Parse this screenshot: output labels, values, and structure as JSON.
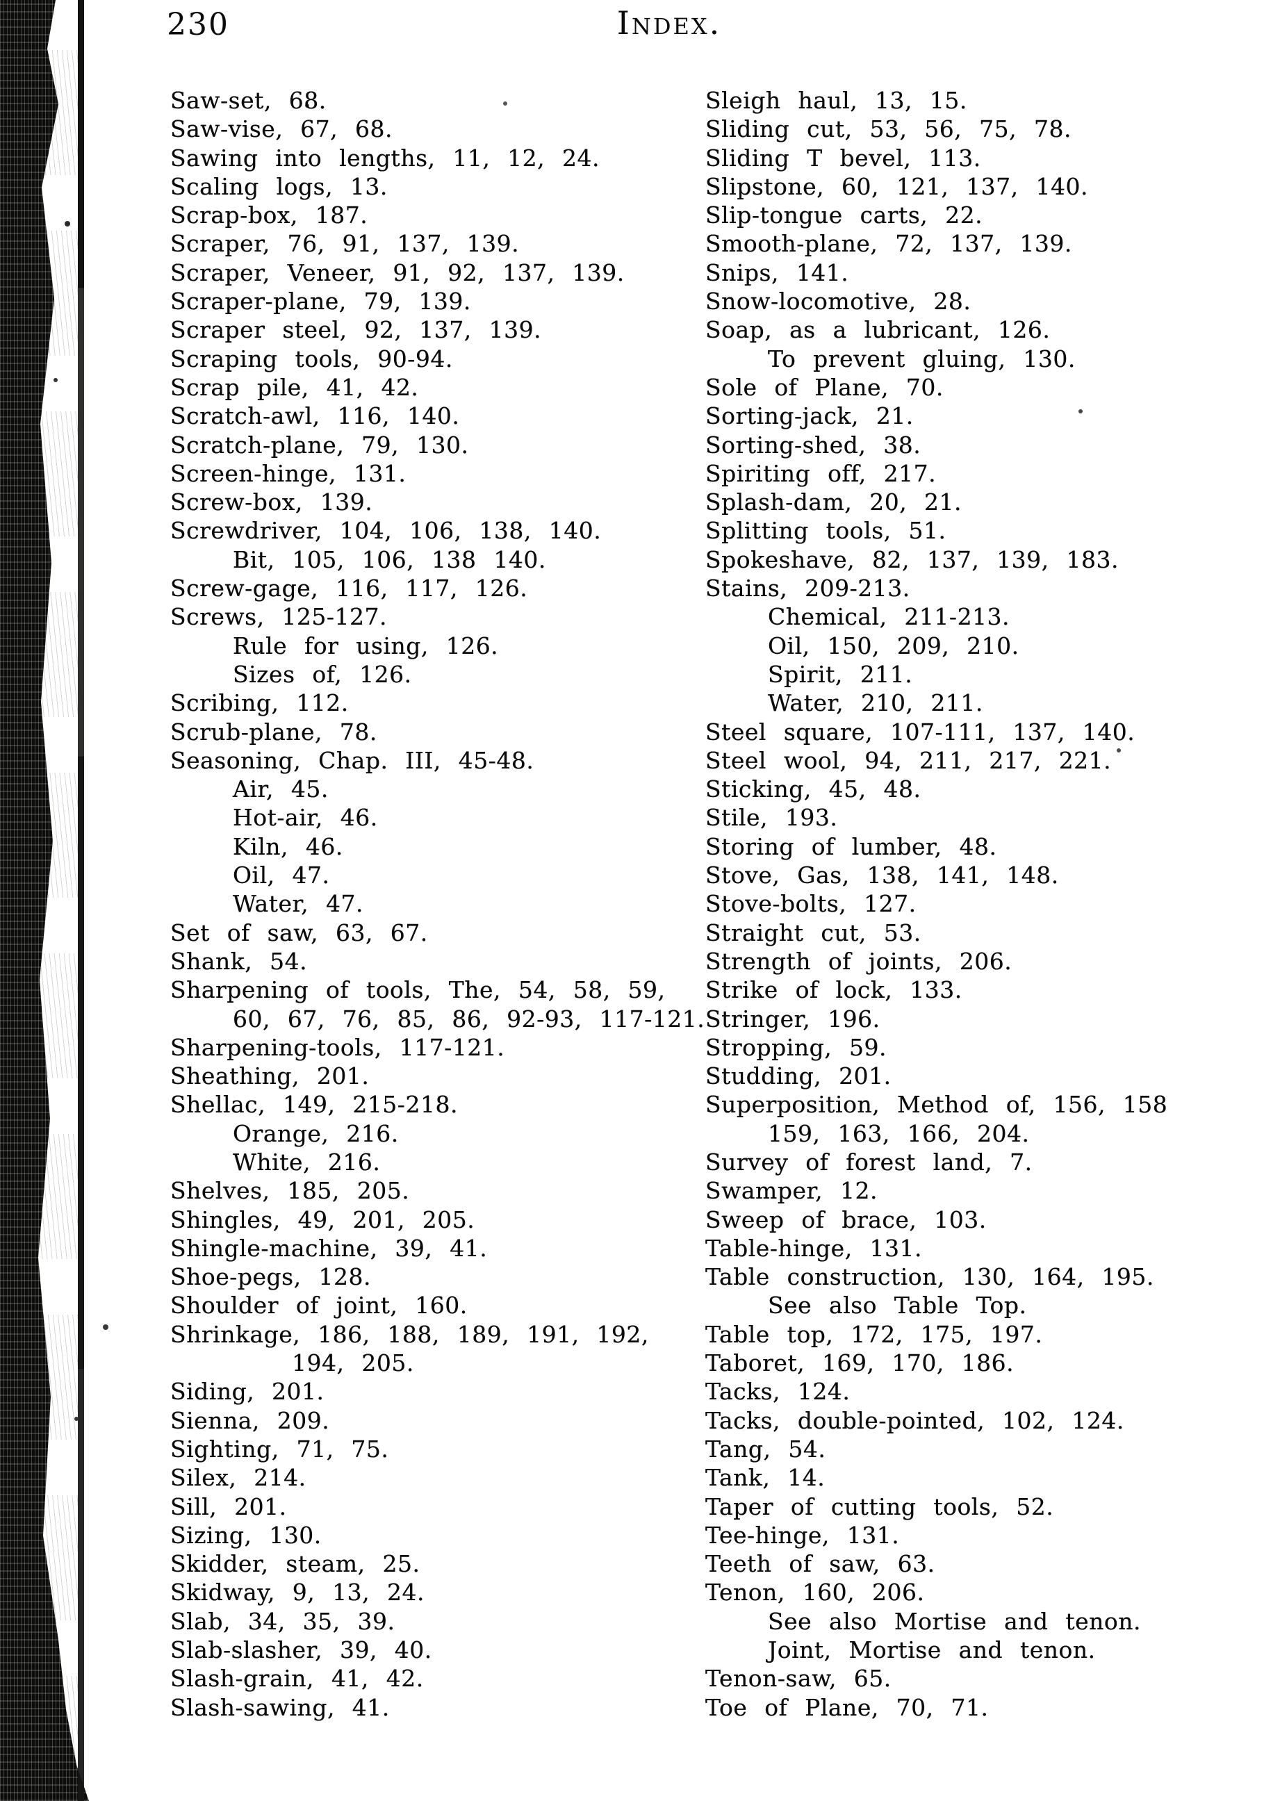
{
  "page": {
    "number": "230",
    "title": "Index."
  },
  "colors": {
    "ink": "#0c0c0c",
    "paper": "#ffffff",
    "spine": "#0d0d0c"
  },
  "columns": {
    "left": [
      {
        "t": "Saw-set, 68.",
        "i": 0
      },
      {
        "t": "Saw-vise, 67, 68.",
        "i": 0
      },
      {
        "t": "Sawing into lengths, 11, 12, 24.",
        "i": 0
      },
      {
        "t": "Scaling logs, 13.",
        "i": 0
      },
      {
        "t": "Scrap-box, 187.",
        "i": 0
      },
      {
        "t": "Scraper, 76, 91, 137, 139.",
        "i": 0
      },
      {
        "t": "Scraper, Veneer, 91, 92, 137, 139.",
        "i": 0
      },
      {
        "t": "Scraper-plane, 79, 139.",
        "i": 0
      },
      {
        "t": "Scraper steel, 92, 137, 139.",
        "i": 0
      },
      {
        "t": "Scraping tools, 90-94.",
        "i": 0
      },
      {
        "t": "Scrap pile, 41, 42.",
        "i": 0
      },
      {
        "t": "Scratch-awl, 116, 140.",
        "i": 0
      },
      {
        "t": "Scratch-plane, 79, 130.",
        "i": 0
      },
      {
        "t": "Screen-hinge, 131.",
        "i": 0
      },
      {
        "t": "Screw-box, 139.",
        "i": 0
      },
      {
        "t": "Screwdriver, 104, 106, 138, 140.",
        "i": 0
      },
      {
        "t": "Bit, 105, 106, 138 140.",
        "i": 1
      },
      {
        "t": "Screw-gage, 116, 117, 126.",
        "i": 0
      },
      {
        "t": "Screws, 125-127.",
        "i": 0
      },
      {
        "t": "Rule for using, 126.",
        "i": 1
      },
      {
        "t": "Sizes of, 126.",
        "i": 1
      },
      {
        "t": "Scribing, 112.",
        "i": 0
      },
      {
        "t": "Scrub-plane, 78.",
        "i": 0
      },
      {
        "t": "Seasoning, Chap. III, 45-48.",
        "i": 0
      },
      {
        "t": "Air, 45.",
        "i": 1
      },
      {
        "t": "Hot-air, 46.",
        "i": 1
      },
      {
        "t": "Kiln, 46.",
        "i": 1
      },
      {
        "t": "Oil, 47.",
        "i": 1
      },
      {
        "t": "Water, 47.",
        "i": 1
      },
      {
        "t": "Set of saw, 63, 67.",
        "i": 0
      },
      {
        "t": "Shank, 54.",
        "i": 0
      },
      {
        "t": "Sharpening of tools, The, 54, 58, 59,",
        "i": 0
      },
      {
        "t": "60, 67, 76, 85, 86, 92-93, 117-121.",
        "i": 1
      },
      {
        "t": "Sharpening-tools, 117-121.",
        "i": 0
      },
      {
        "t": "Sheathing, 201.",
        "i": 0
      },
      {
        "t": "Shellac, 149, 215-218.",
        "i": 0
      },
      {
        "t": "Orange, 216.",
        "i": 1
      },
      {
        "t": "White, 216.",
        "i": 1
      },
      {
        "t": "Shelves, 185, 205.",
        "i": 0
      },
      {
        "t": "Shingles, 49, 201, 205.",
        "i": 0
      },
      {
        "t": "Shingle-machine, 39, 41.",
        "i": 0
      },
      {
        "t": "Shoe-pegs, 128.",
        "i": 0
      },
      {
        "t": "Shoulder of joint, 160.",
        "i": 0
      },
      {
        "t": "Shrinkage, 186, 188, 189, 191, 192,",
        "i": 0
      },
      {
        "t": "194, 205.",
        "i": 2
      },
      {
        "t": "Siding, 201.",
        "i": 0
      },
      {
        "t": "Sienna, 209.",
        "i": 0
      },
      {
        "t": "Sighting, 71, 75.",
        "i": 0
      },
      {
        "t": "Silex, 214.",
        "i": 0
      },
      {
        "t": "Sill, 201.",
        "i": 0
      },
      {
        "t": "Sizing, 130.",
        "i": 0
      },
      {
        "t": "Skidder, steam, 25.",
        "i": 0
      },
      {
        "t": "Skidway, 9, 13, 24.",
        "i": 0
      },
      {
        "t": "Slab, 34, 35, 39.",
        "i": 0
      },
      {
        "t": "Slab-slasher, 39, 40.",
        "i": 0
      },
      {
        "t": "Slash-grain, 41, 42.",
        "i": 0
      },
      {
        "t": "Slash-sawing, 41.",
        "i": 0
      }
    ],
    "right": [
      {
        "t": "Sleigh haul, 13, 15.",
        "i": 0
      },
      {
        "t": "Sliding cut, 53, 56, 75, 78.",
        "i": 0
      },
      {
        "t": "Sliding T bevel, 113.",
        "i": 0
      },
      {
        "t": "Slipstone, 60, 121, 137, 140.",
        "i": 0
      },
      {
        "t": "Slip-tongue carts, 22.",
        "i": 0
      },
      {
        "t": "Smooth-plane, 72, 137, 139.",
        "i": 0
      },
      {
        "t": "Snips, 141.",
        "i": 0
      },
      {
        "t": "Snow-locomotive, 28.",
        "i": 0
      },
      {
        "t": "Soap, as a lubricant, 126.",
        "i": 0
      },
      {
        "t": "To prevent gluing, 130.",
        "i": 1
      },
      {
        "t": "Sole of Plane, 70.",
        "i": 0
      },
      {
        "t": "Sorting-jack, 21.",
        "i": 0
      },
      {
        "t": "Sorting-shed, 38.",
        "i": 0
      },
      {
        "t": "Spiriting off, 217.",
        "i": 0
      },
      {
        "t": "Splash-dam, 20, 21.",
        "i": 0
      },
      {
        "t": "Splitting tools, 51.",
        "i": 0
      },
      {
        "t": "Spokeshave, 82, 137, 139, 183.",
        "i": 0
      },
      {
        "t": "Stains, 209-213.",
        "i": 0
      },
      {
        "t": "Chemical, 211-213.",
        "i": 1
      },
      {
        "t": "Oil, 150, 209, 210.",
        "i": 1
      },
      {
        "t": "Spirit, 211.",
        "i": 1
      },
      {
        "t": "Water, 210, 211.",
        "i": 1
      },
      {
        "t": "Steel square, 107-111, 137, 140.",
        "i": 0
      },
      {
        "t": "Steel wool, 94, 211, 217, 221.",
        "i": 0
      },
      {
        "t": "Sticking, 45, 48.",
        "i": 0
      },
      {
        "t": "Stile, 193.",
        "i": 0
      },
      {
        "t": "Storing of lumber, 48.",
        "i": 0
      },
      {
        "t": "Stove, Gas, 138, 141, 148.",
        "i": 0
      },
      {
        "t": "Stove-bolts, 127.",
        "i": 0
      },
      {
        "t": "Straight cut, 53.",
        "i": 0
      },
      {
        "t": "Strength of joints, 206.",
        "i": 0
      },
      {
        "t": "Strike of lock, 133.",
        "i": 0
      },
      {
        "t": "Stringer, 196.",
        "i": 0
      },
      {
        "t": "Stropping, 59.",
        "i": 0
      },
      {
        "t": "Studding, 201.",
        "i": 0
      },
      {
        "t": "Superposition, Method of, 156, 158",
        "i": 0
      },
      {
        "t": "159, 163, 166, 204.",
        "i": 1
      },
      {
        "t": "Survey of forest land, 7.",
        "i": 0
      },
      {
        "t": "Swamper, 12.",
        "i": 0
      },
      {
        "t": "Sweep of brace, 103.",
        "i": 0
      },
      {
        "t": "Table-hinge, 131.",
        "i": 0
      },
      {
        "t": "Table construction, 130, 164, 195.",
        "i": 0
      },
      {
        "t": "See also Table Top.",
        "i": 1
      },
      {
        "t": "Table top, 172, 175, 197.",
        "i": 0
      },
      {
        "t": "Taboret, 169, 170, 186.",
        "i": 0
      },
      {
        "t": "Tacks, 124.",
        "i": 0
      },
      {
        "t": "Tacks, double-pointed, 102, 124.",
        "i": 0
      },
      {
        "t": "Tang, 54.",
        "i": 0
      },
      {
        "t": "Tank, 14.",
        "i": 0
      },
      {
        "t": "Taper of cutting tools, 52.",
        "i": 0
      },
      {
        "t": "Tee-hinge, 131.",
        "i": 0
      },
      {
        "t": "Teeth of saw, 63.",
        "i": 0
      },
      {
        "t": "Tenon, 160, 206.",
        "i": 0
      },
      {
        "t": "See also Mortise and tenon.",
        "i": 1
      },
      {
        "t": "Joint, Mortise and tenon.",
        "i": 1
      },
      {
        "t": "Tenon-saw, 65.",
        "i": 0
      },
      {
        "t": "Toe of Plane, 70, 71.",
        "i": 0
      }
    ]
  }
}
